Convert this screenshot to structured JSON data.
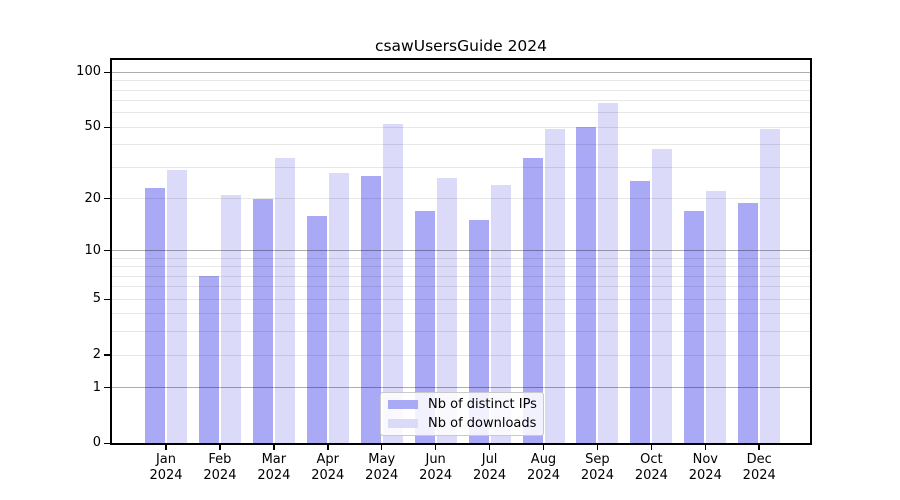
{
  "chart_data": {
    "type": "bar",
    "title": "csawUsersGuide 2024",
    "categories": [
      "Jan",
      "Feb",
      "Mar",
      "Apr",
      "May",
      "Jun",
      "Jul",
      "Aug",
      "Sep",
      "Oct",
      "Nov",
      "Dec"
    ],
    "x_tick_second_line": "2024",
    "series": [
      {
        "name": "Nb of distinct IPs",
        "color": "#a9a9f6",
        "values": [
          23,
          7,
          20,
          16,
          27,
          17,
          15,
          34,
          50,
          25,
          17,
          19
        ]
      },
      {
        "name": "Nb of downloads",
        "color": "#dbdbf9",
        "values": [
          29,
          21,
          34,
          28,
          52,
          26,
          24,
          49,
          68,
          38,
          22,
          49
        ]
      }
    ],
    "xlabel": "",
    "ylabel": "",
    "y_scale": "log10(value+1)",
    "y_axis_tick_labels": [
      "100",
      "50",
      "20",
      "10",
      "5",
      "2",
      "1",
      "0"
    ],
    "y_major_gridlines": [
      100,
      10,
      1
    ],
    "y_minor_gridlines": [
      90,
      80,
      70,
      60,
      50,
      40,
      30,
      20,
      9,
      8,
      7,
      6,
      5,
      4,
      3,
      2
    ],
    "ylim": [
      0,
      118
    ],
    "grid": true,
    "legend_position": "lower center"
  }
}
